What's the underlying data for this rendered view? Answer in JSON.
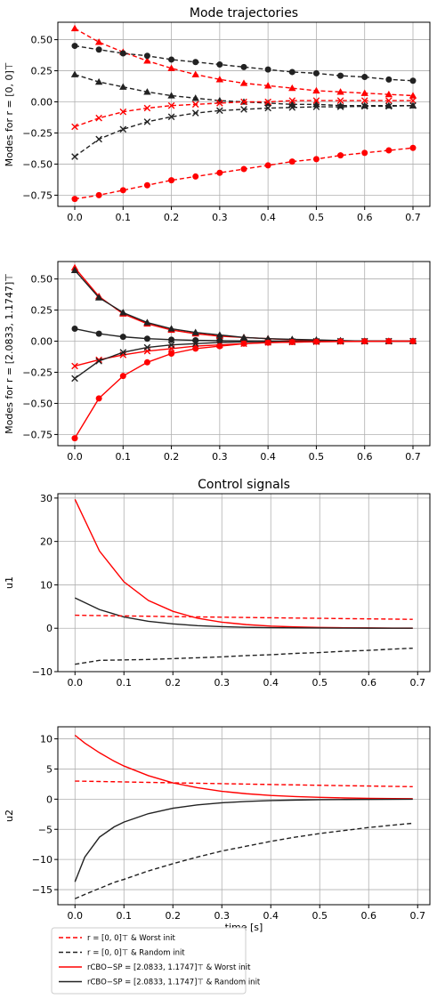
{
  "chart_data": [
    {
      "type": "line",
      "title": "Mode trajectories",
      "xlabel": "",
      "ylabel": "Modes for r = [0, 0]⊤",
      "xlim": [
        -0.035,
        0.735
      ],
      "ylim": [
        -0.84,
        0.64
      ],
      "xticks": [
        0.0,
        0.1,
        0.2,
        0.3,
        0.4,
        0.5,
        0.6,
        0.7
      ],
      "yticks": [
        -0.75,
        -0.5,
        -0.25,
        0.0,
        0.25,
        0.5
      ],
      "grid": true,
      "x": [
        0.0,
        0.05,
        0.1,
        0.15,
        0.2,
        0.25,
        0.3,
        0.35,
        0.4,
        0.45,
        0.5,
        0.55,
        0.6,
        0.65,
        0.7
      ],
      "series": [
        {
          "color": "#ff0000",
          "dash": true,
          "marker": "triangle",
          "values": [
            0.59,
            0.48,
            0.4,
            0.33,
            0.27,
            0.22,
            0.18,
            0.15,
            0.13,
            0.11,
            0.09,
            0.08,
            0.07,
            0.06,
            0.05
          ]
        },
        {
          "color": "#222222",
          "dash": true,
          "marker": "circle",
          "values": [
            0.45,
            0.42,
            0.39,
            0.37,
            0.34,
            0.32,
            0.3,
            0.28,
            0.26,
            0.24,
            0.23,
            0.21,
            0.2,
            0.18,
            0.17
          ]
        },
        {
          "color": "#222222",
          "dash": true,
          "marker": "triangle",
          "values": [
            0.22,
            0.16,
            0.12,
            0.08,
            0.05,
            0.03,
            0.01,
            0.0,
            -0.01,
            -0.02,
            -0.02,
            -0.03,
            -0.03,
            -0.03,
            -0.03
          ]
        },
        {
          "color": "#ff0000",
          "dash": true,
          "marker": "x",
          "values": [
            -0.2,
            -0.13,
            -0.08,
            -0.05,
            -0.03,
            -0.02,
            -0.01,
            0.0,
            0.0,
            0.01,
            0.01,
            0.01,
            0.01,
            0.01,
            0.01
          ]
        },
        {
          "color": "#222222",
          "dash": true,
          "marker": "x",
          "values": [
            -0.44,
            -0.3,
            -0.22,
            -0.16,
            -0.12,
            -0.09,
            -0.07,
            -0.06,
            -0.05,
            -0.045,
            -0.04,
            -0.04,
            -0.035,
            -0.035,
            -0.03
          ]
        },
        {
          "color": "#ff0000",
          "dash": true,
          "marker": "circle",
          "values": [
            -0.78,
            -0.75,
            -0.71,
            -0.67,
            -0.63,
            -0.6,
            -0.57,
            -0.54,
            -0.51,
            -0.48,
            -0.46,
            -0.43,
            -0.41,
            -0.39,
            -0.37
          ]
        }
      ]
    },
    {
      "type": "line",
      "title": "",
      "xlabel": "",
      "ylabel": "Modes for r = [2.0833, 1.1747]⊤",
      "xlim": [
        -0.035,
        0.735
      ],
      "ylim": [
        -0.84,
        0.64
      ],
      "xticks": [
        0.0,
        0.1,
        0.2,
        0.3,
        0.4,
        0.5,
        0.6,
        0.7
      ],
      "yticks": [
        -0.75,
        -0.5,
        -0.25,
        0.0,
        0.25,
        0.5
      ],
      "grid": true,
      "x": [
        0.0,
        0.05,
        0.1,
        0.15,
        0.2,
        0.25,
        0.3,
        0.35,
        0.4,
        0.45,
        0.5,
        0.55,
        0.6,
        0.65,
        0.7
      ],
      "series": [
        {
          "color": "#ff0000",
          "dash": false,
          "marker": "triangle",
          "values": [
            0.59,
            0.36,
            0.22,
            0.14,
            0.09,
            0.06,
            0.04,
            0.03,
            0.02,
            0.01,
            0.005,
            0.0,
            0.0,
            0.0,
            0.0
          ]
        },
        {
          "color": "#222222",
          "dash": false,
          "marker": "triangle",
          "values": [
            0.57,
            0.35,
            0.23,
            0.15,
            0.1,
            0.07,
            0.05,
            0.03,
            0.02,
            0.015,
            0.01,
            0.005,
            0.0,
            0.0,
            0.0
          ]
        },
        {
          "color": "#222222",
          "dash": false,
          "marker": "circle",
          "values": [
            0.1,
            0.06,
            0.035,
            0.02,
            0.012,
            0.007,
            0.004,
            0.002,
            0.001,
            0.0,
            0.0,
            0.0,
            0.0,
            0.0,
            0.0
          ]
        },
        {
          "color": "#ff0000",
          "dash": false,
          "marker": "x",
          "values": [
            -0.2,
            -0.15,
            -0.11,
            -0.08,
            -0.06,
            -0.04,
            -0.03,
            -0.02,
            -0.01,
            -0.008,
            -0.005,
            -0.003,
            -0.002,
            -0.001,
            0.0
          ]
        },
        {
          "color": "#222222",
          "dash": false,
          "marker": "x",
          "values": [
            -0.3,
            -0.16,
            -0.09,
            -0.05,
            -0.03,
            -0.02,
            -0.01,
            -0.006,
            -0.003,
            -0.002,
            -0.001,
            0.0,
            0.0,
            0.0,
            0.0
          ]
        },
        {
          "color": "#ff0000",
          "dash": false,
          "marker": "circle",
          "values": [
            -0.78,
            -0.46,
            -0.28,
            -0.17,
            -0.1,
            -0.06,
            -0.04,
            -0.02,
            -0.012,
            -0.007,
            -0.004,
            -0.002,
            -0.001,
            0.0,
            0.0
          ]
        }
      ]
    },
    {
      "type": "line",
      "title": "Control signals",
      "xlabel": "",
      "ylabel": "u1",
      "xlim": [
        -0.035,
        0.725
      ],
      "ylim": [
        -10,
        31
      ],
      "xticks": [
        0.0,
        0.1,
        0.2,
        0.3,
        0.4,
        0.5,
        0.6,
        0.7
      ],
      "yticks": [
        -10,
        0,
        10,
        20,
        30
      ],
      "grid": true,
      "x": [
        0.0,
        0.05,
        0.1,
        0.15,
        0.2,
        0.25,
        0.3,
        0.35,
        0.4,
        0.45,
        0.5,
        0.55,
        0.6,
        0.65,
        0.69
      ],
      "series": [
        {
          "color": "#ff0000",
          "dash": false,
          "values": [
            29.7,
            17.8,
            10.7,
            6.4,
            3.9,
            2.3,
            1.4,
            0.84,
            0.5,
            0.3,
            0.18,
            0.11,
            0.07,
            0.04,
            0.02
          ]
        },
        {
          "color": "#222222",
          "dash": false,
          "values": [
            7.0,
            4.3,
            2.6,
            1.6,
            1.0,
            0.6,
            0.36,
            0.22,
            0.13,
            0.08,
            0.05,
            0.03,
            0.02,
            0.01,
            0.0
          ]
        },
        {
          "color": "#ff0000",
          "dash": true,
          "values": [
            3.0,
            2.92,
            2.84,
            2.76,
            2.69,
            2.62,
            2.55,
            2.48,
            2.41,
            2.35,
            2.29,
            2.22,
            2.16,
            2.1,
            2.05
          ]
        },
        {
          "color": "#222222",
          "dash": true,
          "values": [
            -8.3,
            -7.4,
            -7.3,
            -7.2,
            -7.0,
            -6.8,
            -6.6,
            -6.3,
            -6.1,
            -5.8,
            -5.6,
            -5.3,
            -5.1,
            -4.8,
            -4.6
          ]
        }
      ]
    },
    {
      "type": "line",
      "title": "",
      "xlabel": "time [s]",
      "ylabel": "u2",
      "xlim": [
        -0.035,
        0.725
      ],
      "ylim": [
        -17.5,
        12
      ],
      "xticks": [
        0.0,
        0.1,
        0.2,
        0.3,
        0.4,
        0.5,
        0.6,
        0.7
      ],
      "yticks": [
        -15,
        -10,
        -5,
        0,
        5,
        10
      ],
      "grid": true,
      "x": [
        0.0,
        0.02,
        0.05,
        0.08,
        0.1,
        0.15,
        0.2,
        0.25,
        0.3,
        0.35,
        0.4,
        0.45,
        0.5,
        0.55,
        0.6,
        0.65,
        0.69
      ],
      "series": [
        {
          "color": "#ff0000",
          "dash": false,
          "values": [
            10.6,
            9.3,
            7.7,
            6.3,
            5.5,
            3.9,
            2.7,
            1.9,
            1.3,
            0.9,
            0.62,
            0.43,
            0.3,
            0.2,
            0.14,
            0.1,
            0.07
          ]
        },
        {
          "color": "#ff0000",
          "dash": true,
          "values": [
            3.0,
            2.97,
            2.93,
            2.89,
            2.86,
            2.78,
            2.71,
            2.64,
            2.57,
            2.5,
            2.43,
            2.37,
            2.3,
            2.24,
            2.18,
            2.12,
            2.07
          ]
        },
        {
          "color": "#222222",
          "dash": false,
          "values": [
            -13.7,
            -9.6,
            -6.3,
            -4.6,
            -3.8,
            -2.4,
            -1.5,
            -0.95,
            -0.6,
            -0.38,
            -0.24,
            -0.15,
            -0.09,
            -0.06,
            -0.04,
            -0.02,
            -0.01
          ]
        },
        {
          "color": "#222222",
          "dash": true,
          "values": [
            -16.5,
            -15.8,
            -14.8,
            -13.8,
            -13.3,
            -11.9,
            -10.7,
            -9.6,
            -8.6,
            -7.8,
            -7.0,
            -6.3,
            -5.7,
            -5.2,
            -4.7,
            -4.3,
            -4.0
          ]
        }
      ]
    }
  ],
  "legend": {
    "placement": "bottom-left",
    "entries": [
      {
        "label": "r = [0, 0]⊤ & Worst init",
        "color": "#ff0000",
        "dash": true
      },
      {
        "label": "r = [0, 0]⊤ & Random init",
        "color": "#222222",
        "dash": true
      },
      {
        "label": "rCBO−SP = [2.0833, 1.1747]⊤ & Worst init",
        "color": "#ff0000",
        "dash": false
      },
      {
        "label": "rCBO−SP = [2.0833, 1.1747]⊤ & Random init",
        "color": "#222222",
        "dash": false
      }
    ]
  }
}
